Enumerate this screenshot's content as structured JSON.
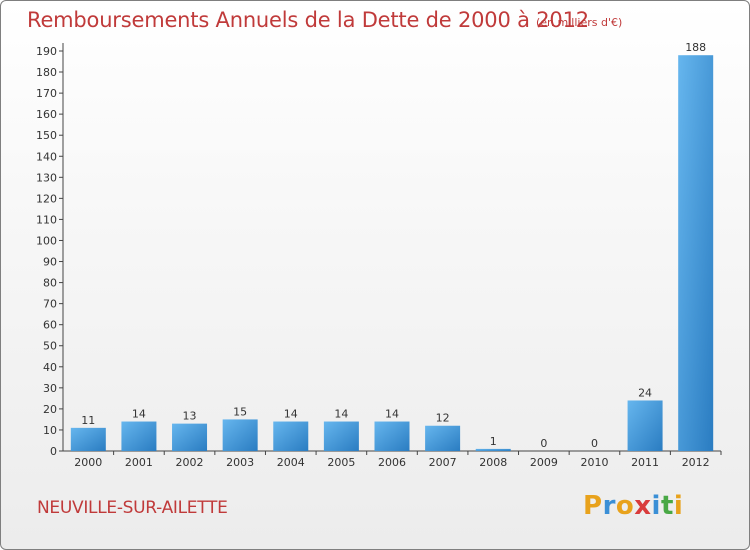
{
  "header": {
    "title": "Remboursements Annuels de la Dette de 2000 à 2012",
    "unit": "(en milliers d'€)"
  },
  "footer": {
    "commune": "NEUVILLE-SUR-AILETTE",
    "logo_letters": [
      "P",
      "r",
      "o",
      "x",
      "i",
      "t",
      "i"
    ],
    "logo_colors": [
      "#e8a21c",
      "#3a8fd6",
      "#e8a21c",
      "#d93b3b",
      "#3a8fd6",
      "#49a845",
      "#e8a21c"
    ]
  },
  "colors": {
    "bar_light": "#62b2ec",
    "bar_dark": "#2c7fc4",
    "title": "#c03a3a"
  },
  "chart_data": {
    "type": "bar",
    "title": "Remboursements Annuels de la Dette de 2000 à 2012",
    "unit": "(en milliers d'€)",
    "xlabel": "",
    "ylabel": "",
    "categories": [
      "2000",
      "2001",
      "2002",
      "2003",
      "2004",
      "2005",
      "2006",
      "2007",
      "2008",
      "2009",
      "2010",
      "2011",
      "2012"
    ],
    "values": [
      11,
      14,
      13,
      15,
      14,
      14,
      14,
      12,
      1,
      0,
      0,
      24,
      188
    ],
    "ylim": [
      0,
      190
    ],
    "ytick_step": 10,
    "grid": false,
    "legend": "none"
  }
}
